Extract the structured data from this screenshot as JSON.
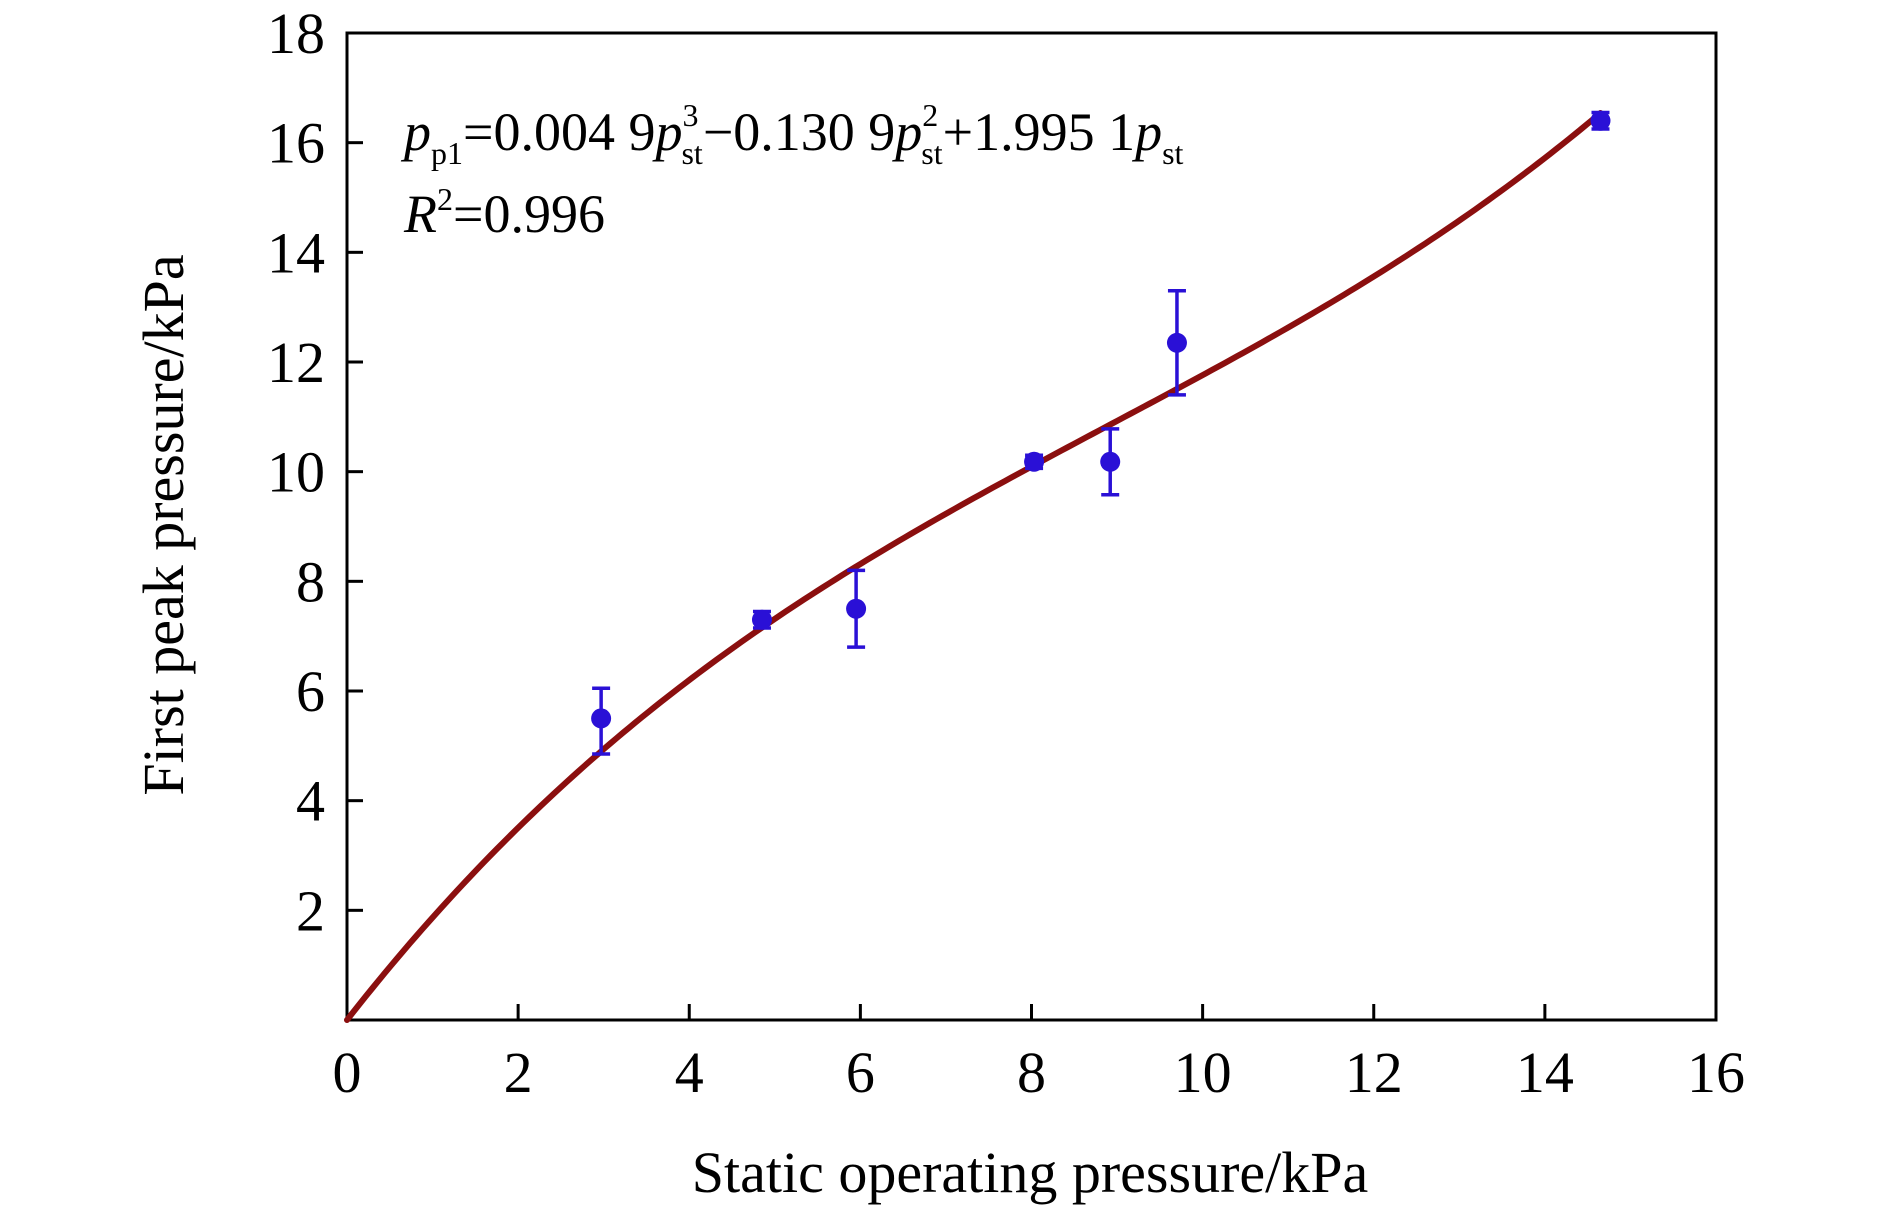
{
  "chart_data": {
    "type": "scatter",
    "xlabel": "Static operating pressure/kPa",
    "ylabel": "First peak pressure/kPa",
    "xlim": [
      0,
      16
    ],
    "ylim": [
      0,
      18
    ],
    "x_ticks": [
      0,
      2,
      4,
      6,
      8,
      10,
      12,
      14,
      16
    ],
    "y_ticks": [
      2,
      4,
      6,
      8,
      10,
      12,
      14,
      16,
      18
    ],
    "x_tick_labels": [
      "0",
      "2",
      "4",
      "6",
      "8",
      "10",
      "12",
      "14",
      "16"
    ],
    "y_tick_labels": [
      "2",
      "4",
      "6",
      "8",
      "10",
      "12",
      "14",
      "16",
      "18"
    ],
    "grid": false,
    "legend": "none",
    "points": [
      {
        "x": 2.97,
        "y": 5.5,
        "err_low": 0.65,
        "err_high": 0.55
      },
      {
        "x": 4.85,
        "y": 7.3,
        "err_low": 0.15,
        "err_high": 0.15
      },
      {
        "x": 5.95,
        "y": 7.5,
        "err_low": 0.7,
        "err_high": 0.7
      },
      {
        "x": 8.03,
        "y": 10.18,
        "err_low": 0.12,
        "err_high": 0.12
      },
      {
        "x": 8.92,
        "y": 10.18,
        "err_low": 0.6,
        "err_high": 0.6
      },
      {
        "x": 9.7,
        "y": 12.35,
        "err_low": 0.95,
        "err_high": 0.95
      },
      {
        "x": 14.65,
        "y": 16.4,
        "err_low": 0.15,
        "err_high": 0.15
      }
    ],
    "fit": {
      "coefficients": {
        "a3": 0.0049,
        "a2": -0.1309,
        "a1": 1.9951
      },
      "x_range": [
        0,
        14.65
      ],
      "equation": {
        "lhs": "p",
        "lhs_sub": "p1",
        "eq": "=0.004 9",
        "t1": "p",
        "t1_sup": "3",
        "t1_sub": "st",
        "op1": "−0.130 9",
        "t2": "p",
        "t2_sup": "2",
        "t2_sub": "st",
        "op2": "+1.995 1",
        "t3": "p",
        "t3_sub": "st"
      },
      "r2": {
        "label": "R",
        "sup": "2",
        "value": "=0.996"
      }
    },
    "colors": {
      "points": "#2a10d6",
      "error_bars": "#2a10d6",
      "fit_line": "#8b0f0f",
      "axes": "#000000"
    }
  }
}
